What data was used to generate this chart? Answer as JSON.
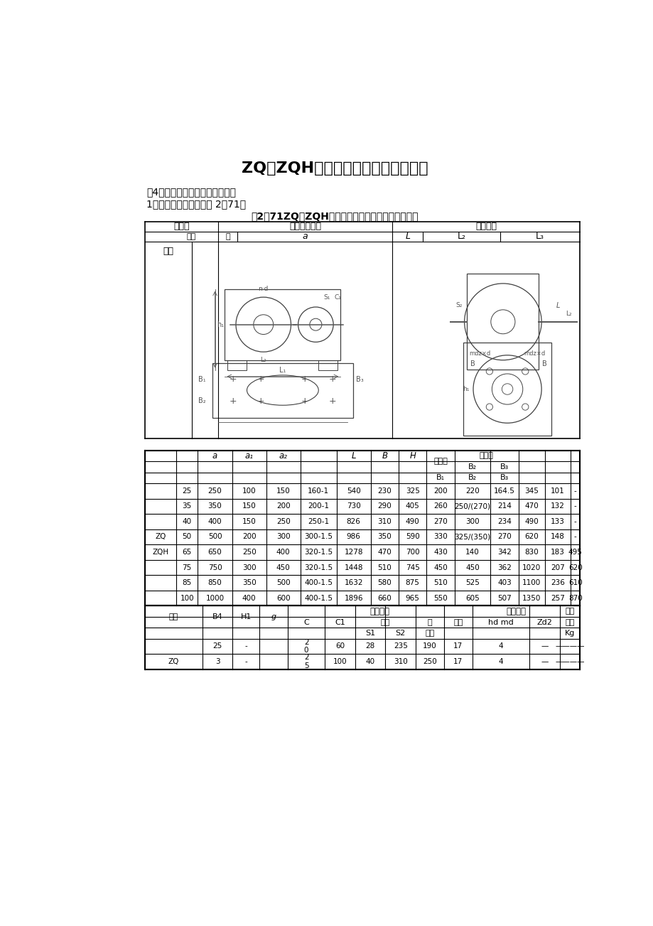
{
  "title": "ZQ、ZQH型圆柱齿轮减速器选型样本",
  "subtitle1": "（4）外形与安装尺弸及轴端型式",
  "subtitle2": "1）外形与安装尺弸见表 2－71。",
  "table_title": "芆2－71ZQ、ZQH型圆柱齿轮减速器外形和安装尺弸",
  "background_color": "#ffffff",
  "text_color": "#000000",
  "line_color": "#000000",
  "header1_center_dist": "中心距",
  "header1_max_dim": "最大外形尺弸",
  "header1_shaft": "轴端尺弸",
  "header2_center": "中心",
  "header2_high": "高",
  "model_label": "型号",
  "high_speed_shaft": "高速轴",
  "low_speed_shaft": "低速轴",
  "install_dim": "安装尺弸",
  "idle_gear": "惰轮部分",
  "max_weight": "最大重量",
  "type_col": "型号",
  "hole_dist": "孔距",
  "hole_dia": "孔径",
  "hole_num": "孔数",
  "weight_unit": "Kg",
  "table_data": [
    [
      "",
      "25",
      "250",
      "100",
      "150",
      "160-1",
      "540",
      "230",
      "325",
      "200",
      "220",
      "164.5",
      "345",
      "101",
      "-"
    ],
    [
      "",
      "35",
      "350",
      "150",
      "200",
      "200-1",
      "730",
      "290",
      "405",
      "260",
      "250/(270)",
      "214",
      "470",
      "132",
      "-"
    ],
    [
      "",
      "40",
      "400",
      "150",
      "250",
      "250-1",
      "826",
      "310",
      "490",
      "270",
      "300",
      "234",
      "490",
      "133",
      "-"
    ],
    [
      "ZQ",
      "50",
      "500",
      "200",
      "300",
      "300-1.5",
      "986",
      "350",
      "590",
      "330",
      "325/(350)",
      "270",
      "620",
      "148",
      "-"
    ],
    [
      "ZQH",
      "65",
      "650",
      "250",
      "400",
      "320-1.5",
      "1278",
      "470",
      "700",
      "430",
      "140",
      "342",
      "830",
      "183",
      "495"
    ],
    [
      "",
      "75",
      "750",
      "300",
      "450",
      "320-1.5",
      "1448",
      "510",
      "745",
      "450",
      "450",
      "362",
      "1020",
      "207",
      "620"
    ],
    [
      "",
      "85",
      "850",
      "350",
      "500",
      "400-1.5",
      "1632",
      "580",
      "875",
      "510",
      "525",
      "403",
      "1100",
      "236",
      "610"
    ],
    [
      "",
      "100",
      "1000",
      "400",
      "600",
      "400-1.5",
      "1896",
      "660",
      "965",
      "550",
      "605",
      "507",
      "1350",
      "257",
      "870"
    ]
  ],
  "install_data": [
    [
      "",
      "25",
      "-",
      "",
      "2\n0",
      "60",
      "28",
      "235",
      "190",
      "17",
      "4",
      "—",
      "————",
      ""
    ],
    [
      "ZQ",
      "3",
      "-",
      "",
      "2\n5",
      "100",
      "40",
      "310",
      "250",
      "17",
      "4",
      "—",
      "————",
      ""
    ]
  ]
}
